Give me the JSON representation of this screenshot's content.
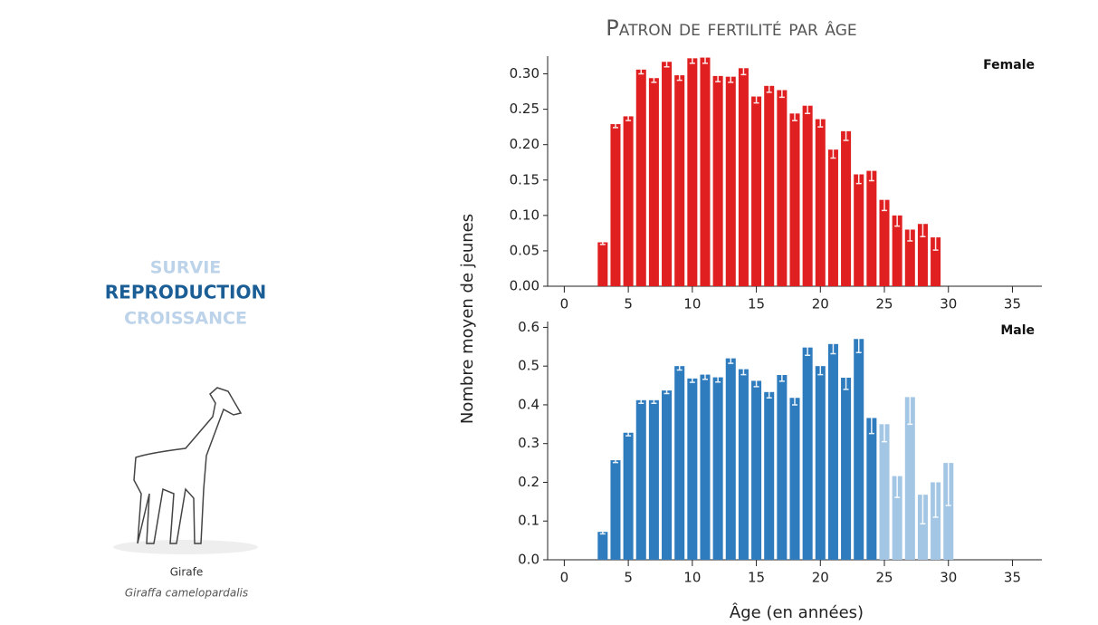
{
  "menu": [
    "SURVIE",
    "REPRODUCTION",
    "CROISSANCE"
  ],
  "species": {
    "name": "Girafe",
    "latin": "Giraffa camelopardalis"
  },
  "figure": {
    "title": "Patron de fertilité par âge",
    "ylabel": "Nombre moyen de jeunes",
    "xlabel": "Âge (en années)"
  },
  "chart_data": [
    {
      "type": "bar",
      "label": "Female",
      "color": "#e02020",
      "x": [
        3,
        4,
        5,
        6,
        7,
        8,
        9,
        10,
        11,
        12,
        13,
        14,
        15,
        16,
        17,
        18,
        19,
        20,
        21,
        22,
        23,
        24,
        25,
        26,
        27,
        28,
        29
      ],
      "values": [
        0.062,
        0.229,
        0.24,
        0.306,
        0.294,
        0.317,
        0.298,
        0.322,
        0.323,
        0.297,
        0.296,
        0.308,
        0.268,
        0.283,
        0.277,
        0.244,
        0.255,
        0.236,
        0.193,
        0.219,
        0.158,
        0.163,
        0.122,
        0.1,
        0.08,
        0.088,
        0.069
      ],
      "errors": [
        0.003,
        0.005,
        0.006,
        0.006,
        0.006,
        0.007,
        0.007,
        0.007,
        0.008,
        0.008,
        0.008,
        0.009,
        0.009,
        0.009,
        0.01,
        0.01,
        0.011,
        0.011,
        0.012,
        0.013,
        0.013,
        0.014,
        0.015,
        0.015,
        0.016,
        0.018,
        0.018
      ],
      "xlim": [
        -1.3,
        37.3
      ],
      "xticks": [
        0,
        5,
        10,
        15,
        20,
        25,
        30,
        35
      ],
      "ylim": [
        0,
        0.325
      ],
      "yticks": [
        {
          "value": 0,
          "label": "0.00"
        },
        0.05,
        {
          "value": 0.1,
          "label": "0.10"
        },
        0.15,
        {
          "value": 0.2,
          "label": "0.20"
        },
        0.25,
        {
          "value": 0.3,
          "label": "0.30"
        }
      ]
    },
    {
      "type": "bar",
      "label": "Male",
      "x": [
        3,
        4,
        5,
        6,
        7,
        8,
        9,
        10,
        11,
        12,
        13,
        14,
        15,
        16,
        17,
        18,
        19,
        20,
        21,
        22,
        23,
        24,
        25,
        26,
        27,
        28,
        29,
        30
      ],
      "values": [
        0.072,
        0.257,
        0.328,
        0.412,
        0.412,
        0.437,
        0.5,
        0.468,
        0.478,
        0.471,
        0.52,
        0.492,
        0.462,
        0.433,
        0.477,
        0.418,
        0.548,
        0.5,
        0.557,
        0.47,
        0.57,
        0.366,
        0.35,
        0.216,
        0.42,
        0.168,
        0.2,
        0.25
      ],
      "errors": [
        0.005,
        0.006,
        0.008,
        0.008,
        0.008,
        0.008,
        0.01,
        0.01,
        0.012,
        0.012,
        0.013,
        0.014,
        0.015,
        0.015,
        0.016,
        0.018,
        0.02,
        0.022,
        0.025,
        0.03,
        0.035,
        0.04,
        0.045,
        0.055,
        0.07,
        0.075,
        0.09,
        0.11
      ],
      "colors": [
        "#2e7bbd",
        "#2e7bbd",
        "#2e7bbd",
        "#2e7bbd",
        "#2e7bbd",
        "#2e7bbd",
        "#2e7bbd",
        "#2e7bbd",
        "#2e7bbd",
        "#2e7bbd",
        "#2e7bbd",
        "#2e7bbd",
        "#2e7bbd",
        "#2e7bbd",
        "#2e7bbd",
        "#2e7bbd",
        "#2e7bbd",
        "#2e7bbd",
        "#2e7bbd",
        "#2e7bbd",
        "#2e7bbd",
        "#2e7bbd",
        "#a3c6e4",
        "#a3c6e4",
        "#a3c6e4",
        "#a3c6e4",
        "#a3c6e4",
        "#a3c6e4"
      ],
      "xlim": [
        -1.3,
        37.3
      ],
      "xticks": [
        0,
        5,
        10,
        15,
        20,
        25,
        30,
        35
      ],
      "ylim": [
        0,
        0.615
      ],
      "yticks": [
        {
          "value": 0,
          "label": "0.0"
        },
        0.1,
        0.2,
        0.3,
        0.4,
        0.5,
        0.6
      ]
    }
  ]
}
